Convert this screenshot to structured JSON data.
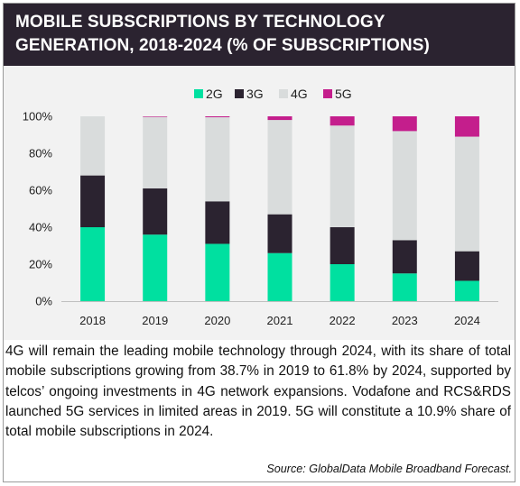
{
  "title": "MOBILE SUBSCRIPTIONS BY TECHNOLOGY GENERATION, 2018-2024 (% OF SUBSCRIPTIONS)",
  "chart_data": {
    "type": "bar",
    "stacked": true,
    "categories": [
      "2018",
      "2019",
      "2020",
      "2021",
      "2022",
      "2023",
      "2024"
    ],
    "series": [
      {
        "name": "2G",
        "color": "#00e0a0",
        "values": [
          40,
          36,
          31,
          26,
          20,
          15,
          11
        ]
      },
      {
        "name": "3G",
        "color": "#2b2330",
        "values": [
          28,
          25,
          23,
          21,
          20,
          18,
          16
        ]
      },
      {
        "name": "4G",
        "color": "#d9dcdc",
        "values": [
          32,
          38.7,
          45.5,
          51,
          55,
          59,
          62
        ]
      },
      {
        "name": "5G",
        "color": "#c41e8c",
        "values": [
          0,
          0.3,
          0.5,
          2,
          5,
          8,
          11
        ]
      }
    ],
    "yticks": [
      "0%",
      "20%",
      "40%",
      "60%",
      "80%",
      "100%"
    ],
    "ylim": [
      0,
      100
    ],
    "legend_position": "top-center",
    "grid": false
  },
  "description": "4G will remain the leading mobile technology through 2024, with its share of total mobile subscriptions growing from 38.7% in 2019 to 61.8% by 2024, supported by telcos’ ongoing investments in 4G network expansions. Vodafone and RCS&RDS launched 5G services in limited areas in 2019. 5G will constitute a 10.9% share of total mobile subscriptions in 2024.",
  "source": "Source: GlobalData Mobile Broadband Forecast."
}
